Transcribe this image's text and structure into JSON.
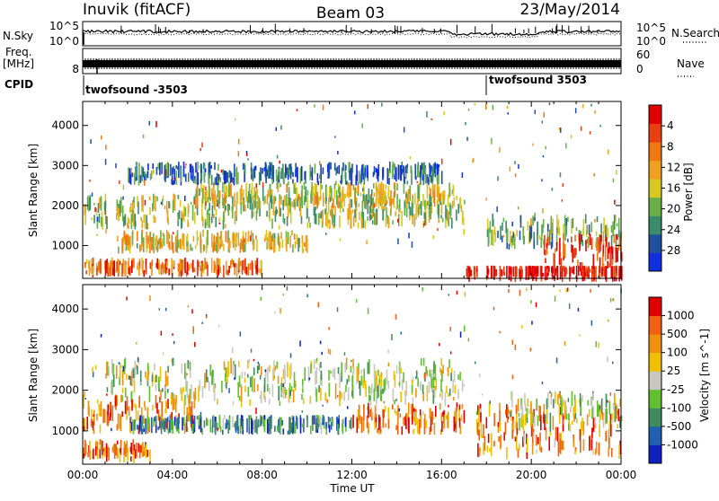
{
  "header": {
    "station": "Inuvik (fitACF)",
    "beam": "Beam 03",
    "date": "23/May/2014"
  },
  "top_panels": {
    "nsky": {
      "label": "N.Sky",
      "y_ticks": [
        "10^5",
        "10^0"
      ]
    },
    "nsearch": {
      "label": "N.Search",
      "y_ticks": [
        "10^5",
        "10^0"
      ]
    },
    "freq": {
      "label_line1": "Freq.",
      "label_line2": "[MHz]",
      "y_ticks": [
        "8"
      ]
    },
    "nave": {
      "label": "Nave",
      "y_ticks": [
        "60",
        "0"
      ]
    },
    "cpid": {
      "label": "CPID",
      "segments": [
        {
          "name": "twofsound -3503",
          "start_hour": 0,
          "end_hour": 18
        },
        {
          "name": "twofsound 3503",
          "start_hour": 18,
          "end_hour": 24
        }
      ]
    }
  },
  "chart_data": [
    {
      "type": "heatmap",
      "title": "",
      "xlabel": "",
      "ylabel": "Slant Range [km]",
      "xlim": [
        0,
        24
      ],
      "ylim": [
        180,
        4600
      ],
      "yticks": [
        1000,
        2000,
        3000,
        4000
      ],
      "colorbar": {
        "label": "Power [dB]",
        "tick_labels": [
          "4",
          "8",
          "12",
          "16",
          "20",
          "24",
          "28"
        ],
        "colors": [
          "#1030e0",
          "#2050a0",
          "#3a8c6a",
          "#6ab048",
          "#d8c820",
          "#f0a020",
          "#f07810",
          "#e84010",
          "#e00000"
        ]
      },
      "bands": [
        {
          "t0": 0.0,
          "t1": 17.0,
          "r0": 1400,
          "r1": 2300,
          "level": 0.45
        },
        {
          "t0": 1.5,
          "t1": 10.0,
          "r0": 800,
          "r1": 1400,
          "level": 0.55
        },
        {
          "t0": 5.0,
          "t1": 16.5,
          "r0": 1900,
          "r1": 2600,
          "level": 0.5
        },
        {
          "t0": 2.0,
          "t1": 16.0,
          "r0": 2500,
          "r1": 3100,
          "level": 0.2
        },
        {
          "t0": 0.0,
          "t1": 8.0,
          "r0": 200,
          "r1": 700,
          "level": 0.75
        },
        {
          "t0": 17.0,
          "t1": 24.0,
          "r0": 200,
          "r1": 500,
          "level": 0.95
        },
        {
          "t0": 18.0,
          "t1": 24.0,
          "r0": 900,
          "r1": 1800,
          "level": 0.35
        },
        {
          "t0": 20.5,
          "t1": 24.0,
          "r0": 300,
          "r1": 1300,
          "level": 0.9
        }
      ]
    },
    {
      "type": "heatmap",
      "title": "",
      "xlabel": "Time UT",
      "ylabel": "Slant Range [km]",
      "xlim": [
        0,
        24
      ],
      "ylim": [
        180,
        4600
      ],
      "xtick_labels": [
        "00:00",
        "04:00",
        "08:00",
        "12:00",
        "16:00",
        "20:00",
        "00:00"
      ],
      "yticks": [
        1000,
        2000,
        3000,
        4000
      ],
      "colorbar": {
        "label": "Velocity [m s^-1]",
        "tick_labels": [
          "1000",
          "500",
          "100",
          "25",
          "-25",
          "-100",
          "-500",
          "-1000"
        ],
        "colors": [
          "#1020c0",
          "#2060b0",
          "#408a60",
          "#60c030",
          "#c8c8c0",
          "#f0c000",
          "#f09010",
          "#f06010",
          "#e00000"
        ]
      },
      "bands": [
        {
          "t0": 1.0,
          "t1": 17.0,
          "r0": 1600,
          "r1": 2800,
          "level": 0.5
        },
        {
          "t0": 0.0,
          "t1": 5.0,
          "r0": 900,
          "r1": 1900,
          "level": 0.8
        },
        {
          "t0": 2.0,
          "t1": 12.0,
          "r0": 900,
          "r1": 1400,
          "level": 0.25
        },
        {
          "t0": 0.0,
          "t1": 3.0,
          "r0": 200,
          "r1": 800,
          "level": 0.78
        },
        {
          "t0": 12.0,
          "t1": 17.0,
          "r0": 900,
          "r1": 1700,
          "level": 0.8
        },
        {
          "t0": 17.5,
          "t1": 24.0,
          "r0": 300,
          "r1": 1700,
          "level": 0.75
        },
        {
          "t0": 19.0,
          "t1": 24.0,
          "r0": 1000,
          "r1": 2000,
          "level": 0.5
        }
      ]
    }
  ]
}
